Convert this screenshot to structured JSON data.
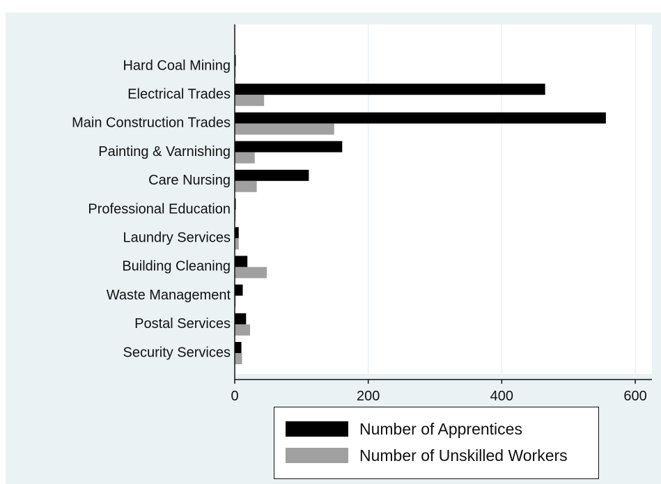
{
  "colors": {
    "frame_background": "#eaf2f3",
    "plot_background": "#ffffff",
    "apprentices": "#000000",
    "unskilled": "#a0a0a0",
    "grid": "#eaf2f3"
  },
  "chart_data": {
    "type": "bar",
    "orientation": "horizontal",
    "categories": [
      "Hard Coal Mining",
      "Electrical Trades",
      "Main Construction Trades",
      "Painting & Varnishing",
      "Care Nursing",
      "Professional Education",
      "Laundry Services",
      "Building Cleaning",
      "Waste Management",
      "Postal Services",
      "Security Services"
    ],
    "series": [
      {
        "name": "Number of Apprentices",
        "values": [
          1,
          465,
          556,
          161,
          111,
          1,
          6,
          19,
          12,
          17,
          10
        ]
      },
      {
        "name": "Number of Unskilled Workers",
        "values": [
          1,
          44,
          149,
          30,
          33,
          1,
          6,
          48,
          1,
          23,
          11
        ]
      }
    ],
    "x_ticks": [
      0,
      200,
      400,
      600
    ],
    "xlim": [
      0,
      625
    ],
    "xlabel": "",
    "ylabel": "",
    "grid": "vertical",
    "legend_position": "bottom-right"
  }
}
